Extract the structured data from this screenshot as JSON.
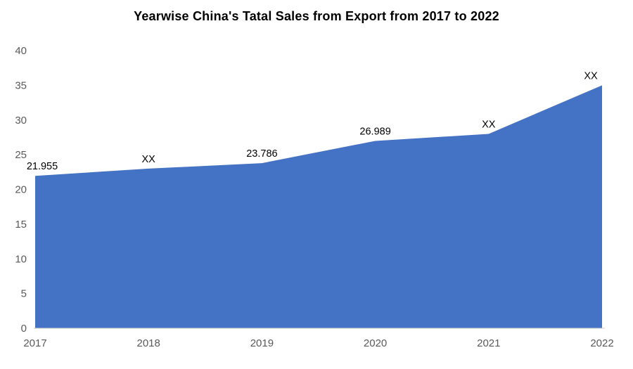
{
  "chart_data": {
    "type": "area",
    "title": "Yearwise China's Tatal Sales from Export from 2017 to 2022",
    "categories": [
      "2017",
      "2018",
      "2019",
      "2020",
      "2021",
      "2022"
    ],
    "values": [
      21.955,
      23.0,
      23.786,
      26.989,
      28.0,
      35.0
    ],
    "data_labels": [
      "21.955",
      "XX",
      "23.786",
      "26.989",
      "XX",
      "XX"
    ],
    "xlabel": "",
    "ylabel": "",
    "ylim": [
      0,
      40
    ],
    "yticks": [
      0,
      5,
      10,
      15,
      20,
      25,
      30,
      35,
      40
    ],
    "grid": false,
    "legend": "none",
    "colors": {
      "area_fill": "#4472C4",
      "title_text": "#000000",
      "axis_text": "#595959",
      "data_label_text": "#000000",
      "axis_line": "#C8C8C8",
      "background": "#FFFFFF"
    }
  }
}
